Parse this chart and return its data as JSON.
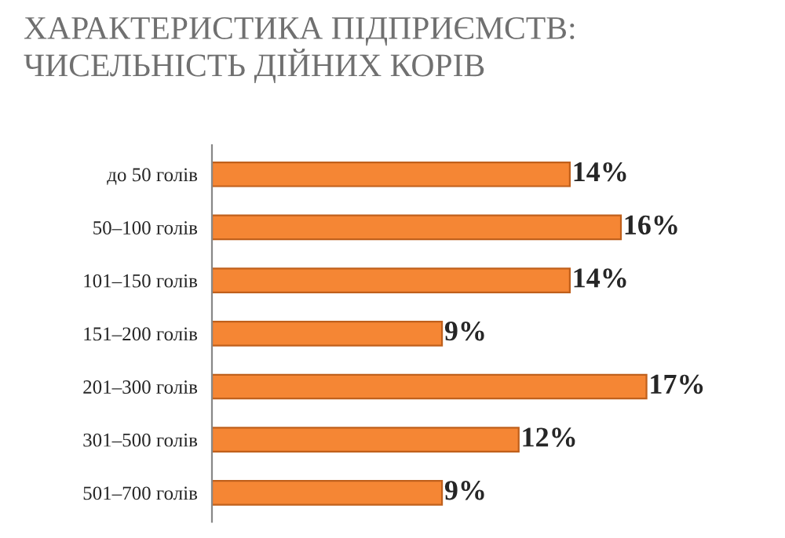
{
  "chart_data": {
    "type": "bar",
    "orientation": "horizontal",
    "title": "ХАРАКТЕРИСТИКА ПІДПРИЄМСТВ:\nЧИСЕЛЬНІСТЬ ДІЙНИХ КОРІВ",
    "categories": [
      "до 50 голів",
      "50–100 голів",
      "101–150 голів",
      "151–200 голів",
      "201–300 голів",
      "301–500 голів",
      "501–700 голів"
    ],
    "values": [
      14,
      16,
      14,
      9,
      17,
      12,
      9
    ],
    "value_labels": [
      "14%",
      "16%",
      "14%",
      "9%",
      "17%",
      "12%",
      "9%"
    ],
    "color": "#f58634"
  }
}
